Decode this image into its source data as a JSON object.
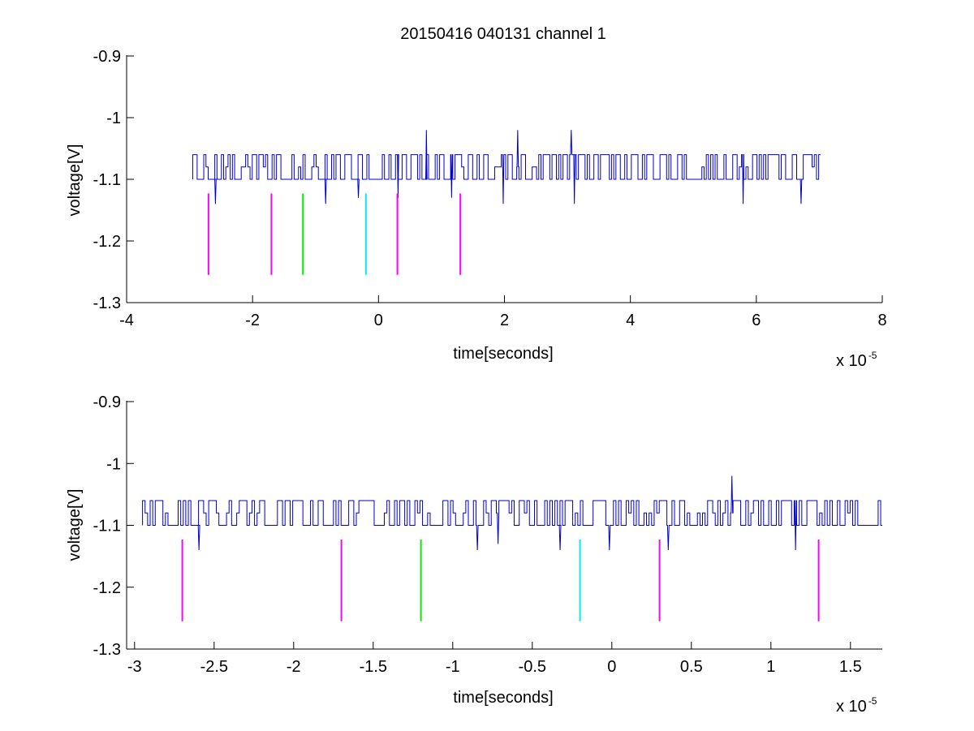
{
  "figure": {
    "title": "20150416 040131 channel 1"
  },
  "colors": {
    "signal": "#0000cc",
    "marker_magenta": "#ff00ff",
    "marker_green": "#00ee00",
    "marker_cyan": "#00eeee",
    "axes": "#000000"
  },
  "chart_data": [
    {
      "type": "line",
      "title": "20150416 040131 channel 1",
      "xlabel": "time[seconds]",
      "ylabel": "voltage[V]",
      "x_exponent_label": "x 10",
      "x_exponent": "-5",
      "xlim": [
        -4,
        8
      ],
      "ylim": [
        -1.3,
        -0.9
      ],
      "xticks": [
        -4,
        -2,
        0,
        2,
        4,
        6,
        8
      ],
      "xtick_labels": [
        "-4",
        "-2",
        "0",
        "2",
        "4",
        "6",
        "8"
      ],
      "yticks": [
        -0.9,
        -1.0,
        -1.1,
        -1.2,
        -1.3
      ],
      "ytick_labels": [
        "-0.9",
        "-1",
        "-1.1",
        "-1.2",
        "-1.3"
      ],
      "grid": false,
      "series": [
        {
          "signal_range_x": [
            -2.95,
            7.02
          ],
          "levels": [
            -1.06,
            -1.08,
            -1.1
          ],
          "spikes_up": [
            [
              0.75,
              -1.02
            ],
            [
              2.2,
              -1.02
            ],
            [
              3.05,
              -1.02
            ]
          ],
          "spikes_down": [
            [
              -2.6,
              -1.14
            ],
            [
              -0.85,
              -1.14
            ],
            [
              -0.33,
              -1.13
            ],
            [
              0.3,
              -1.13
            ],
            [
              1.15,
              -1.13
            ],
            [
              1.97,
              -1.14
            ],
            [
              3.1,
              -1.14
            ],
            [
              5.78,
              -1.14
            ],
            [
              6.7,
              -1.14
            ]
          ]
        }
      ],
      "markers": [
        {
          "x": -2.7,
          "y_top": -1.123,
          "y_bottom": -1.255,
          "color": "magenta"
        },
        {
          "x": -1.7,
          "y_top": -1.123,
          "y_bottom": -1.255,
          "color": "magenta"
        },
        {
          "x": -1.2,
          "y_top": -1.123,
          "y_bottom": -1.255,
          "color": "green"
        },
        {
          "x": -0.2,
          "y_top": -1.123,
          "y_bottom": -1.255,
          "color": "cyan"
        },
        {
          "x": 0.3,
          "y_top": -1.123,
          "y_bottom": -1.255,
          "color": "magenta"
        },
        {
          "x": 1.3,
          "y_top": -1.123,
          "y_bottom": -1.255,
          "color": "magenta"
        }
      ]
    },
    {
      "type": "line",
      "title": "",
      "xlabel": "time[seconds]",
      "ylabel": "voltage[V]",
      "x_exponent_label": "x 10",
      "x_exponent": "-5",
      "xlim": [
        -3.05,
        1.7
      ],
      "ylim": [
        -1.3,
        -0.9
      ],
      "xticks": [
        -3,
        -2.5,
        -2,
        -1.5,
        -1,
        -0.5,
        0,
        0.5,
        1,
        1.5
      ],
      "xtick_labels": [
        "-3",
        "-2.5",
        "-2",
        "-1.5",
        "-1",
        "-0.5",
        "0",
        "0.5",
        "1",
        "1.5"
      ],
      "yticks": [
        -0.9,
        -1.0,
        -1.1,
        -1.2,
        -1.3
      ],
      "ytick_labels": [
        "-0.9",
        "-1",
        "-1.1",
        "-1.2",
        "-1.3"
      ],
      "grid": false,
      "series": [
        {
          "signal_range_x": [
            -2.95,
            1.7
          ],
          "levels": [
            -1.06,
            -1.08,
            -1.1
          ],
          "spikes_up": [
            [
              0.75,
              -1.02
            ]
          ],
          "spikes_down": [
            [
              -2.6,
              -1.14
            ],
            [
              -0.85,
              -1.14
            ],
            [
              -0.72,
              -1.13
            ],
            [
              -0.33,
              -1.14
            ],
            [
              -0.02,
              -1.14
            ],
            [
              0.35,
              -1.14
            ],
            [
              1.15,
              -1.14
            ]
          ]
        }
      ],
      "markers": [
        {
          "x": -2.7,
          "y_top": -1.123,
          "y_bottom": -1.255,
          "color": "magenta"
        },
        {
          "x": -1.7,
          "y_top": -1.123,
          "y_bottom": -1.255,
          "color": "magenta"
        },
        {
          "x": -1.2,
          "y_top": -1.123,
          "y_bottom": -1.255,
          "color": "green"
        },
        {
          "x": -0.2,
          "y_top": -1.123,
          "y_bottom": -1.255,
          "color": "cyan"
        },
        {
          "x": 0.3,
          "y_top": -1.123,
          "y_bottom": -1.255,
          "color": "magenta"
        },
        {
          "x": 1.3,
          "y_top": -1.123,
          "y_bottom": -1.255,
          "color": "magenta"
        }
      ]
    }
  ]
}
